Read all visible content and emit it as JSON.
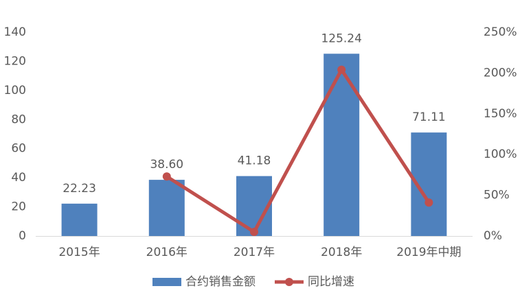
{
  "chart_data": {
    "type": "bar",
    "categories": [
      "2015年",
      "2016年",
      "2017年",
      "2018年",
      "2019年中期"
    ],
    "series": [
      {
        "name": "合约销售金额",
        "type": "bar",
        "color": "#4f81bd",
        "values": [
          22.23,
          38.6,
          41.18,
          125.24,
          71.11
        ],
        "value_labels": [
          "22.23",
          "38.60",
          "41.18",
          "125.24",
          "71.11"
        ]
      },
      {
        "name": "同比增速",
        "type": "line",
        "axis": "y2",
        "color": "#c0504d",
        "values": [
          null,
          73,
          5,
          204,
          41
        ]
      }
    ],
    "ylim": [
      0,
      140
    ],
    "yticks": [
      0,
      20,
      40,
      60,
      80,
      100,
      120,
      140
    ],
    "y2lim": [
      0,
      250
    ],
    "y2ticks": [
      {
        "value": 0,
        "label": "0%"
      },
      {
        "value": 50,
        "label": "50%"
      },
      {
        "value": 100,
        "label": "100%"
      },
      {
        "value": 150,
        "label": "150%"
      },
      {
        "value": 200,
        "label": "200%"
      },
      {
        "value": 250,
        "label": "250%"
      }
    ],
    "grid": false,
    "legend": "bottom"
  }
}
